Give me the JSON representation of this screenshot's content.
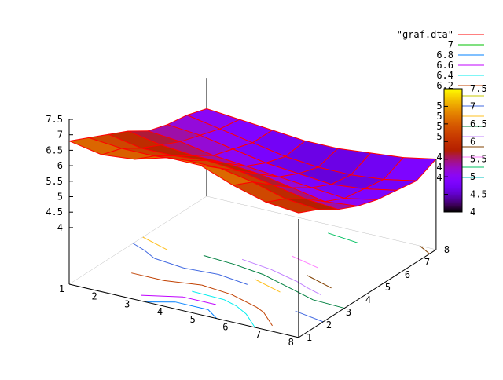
{
  "chart_data": {
    "type": "surface",
    "title": "",
    "x": [
      1,
      2,
      3,
      4,
      5,
      6,
      7,
      8
    ],
    "y": [
      1,
      2,
      3,
      4,
      5,
      6,
      7,
      8
    ],
    "z": [
      [
        6.8,
        6.6,
        6.7,
        7.0,
        7.0,
        6.6,
        6.3,
        6.2
      ],
      [
        6.5,
        6.4,
        6.4,
        6.5,
        6.5,
        6.3,
        6.0,
        5.9
      ],
      [
        6.2,
        6.0,
        6.0,
        6.1,
        6.0,
        5.8,
        5.6,
        5.5
      ],
      [
        5.9,
        5.7,
        5.6,
        5.6,
        5.5,
        5.3,
        5.1,
        5.2
      ],
      [
        5.5,
        5.4,
        5.2,
        5.1,
        5.0,
        4.9,
        4.8,
        5.0
      ],
      [
        5.3,
        5.2,
        5.0,
        4.8,
        4.7,
        4.6,
        4.7,
        4.9
      ],
      [
        5.2,
        5.0,
        4.8,
        4.6,
        4.5,
        4.5,
        4.6,
        4.8
      ],
      [
        5.0,
        4.9,
        4.8,
        4.7,
        4.7,
        4.8,
        4.9,
        5.1
      ]
    ],
    "x_ticks": [
      "1",
      "2",
      "3",
      "4",
      "5",
      "6",
      "7",
      "8"
    ],
    "y_ticks": [
      "1",
      "2",
      "3",
      "4",
      "5",
      "6",
      "7",
      "8"
    ],
    "z_ticks": [
      "4",
      "4.5",
      "5",
      "5.5",
      "6",
      "6.5",
      "7",
      "7.5"
    ],
    "zlim": [
      4,
      7.5
    ],
    "colorbar": {
      "range": [
        4,
        7.5
      ],
      "ticks": [
        "4",
        "4.5",
        "5",
        "5.5",
        "6",
        "6.5",
        "7",
        "7.5"
      ]
    },
    "mesh_color": "#ff0000",
    "legend_placement": "top-right",
    "legend": [
      {
        "label": "\"graf.dta\"",
        "color": "#ff0000"
      },
      {
        "label": "7",
        "color": "#00c000",
        "level": 7
      },
      {
        "label": "6.8",
        "color": "#0080ff",
        "level": 6.8
      },
      {
        "label": "6.6",
        "color": "#c000ff",
        "level": 6.6
      },
      {
        "label": "6.4",
        "color": "#00eeee",
        "level": 6.4
      },
      {
        "label": "6.2",
        "color": "#c04000",
        "level": 6.2
      },
      {
        "label": "6",
        "color": "#c8c800",
        "level": 6
      },
      {
        "label": "5.8",
        "color": "#4169e1",
        "level": 5.8
      },
      {
        "label": "5.6",
        "color": "#ffc020",
        "level": 5.6
      },
      {
        "label": "5.4",
        "color": "#008040",
        "level": 5.4
      },
      {
        "label": "5.2",
        "color": "#c080ff",
        "level": 5.2
      },
      {
        "label": "5",
        "color": "#804000",
        "level": 5
      },
      {
        "label": "4.8",
        "color": "#ff80ff",
        "level": 4.8
      },
      {
        "label": "4.6",
        "color": "#00c060",
        "level": 4.6
      },
      {
        "label": "4.4",
        "color": "#00c0c0",
        "level": 4.4
      }
    ]
  }
}
